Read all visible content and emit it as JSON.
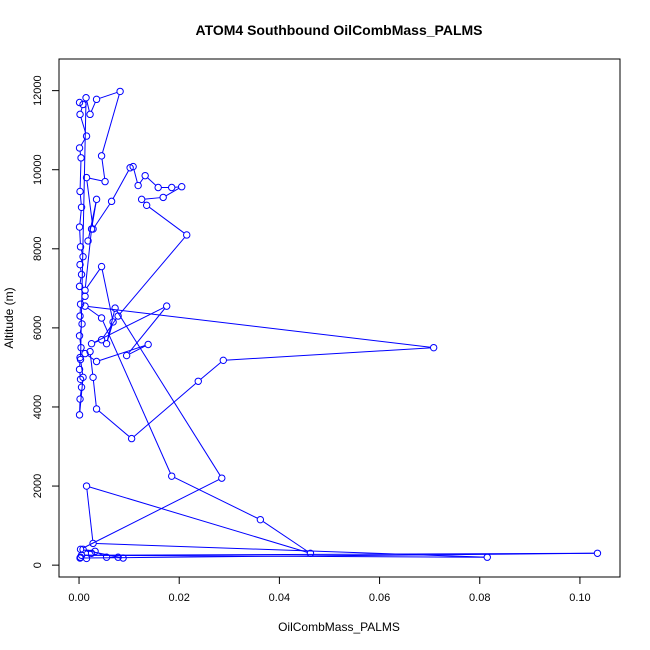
{
  "chart_data": {
    "type": "scatter",
    "title": "ATOM4 Southbound OilCombMass_PALMS",
    "xlabel": "OilCombMass_PALMS",
    "ylabel": "Altitude (m)",
    "xlim": [
      -0.004,
      0.108
    ],
    "ylim": [
      -300,
      12800
    ],
    "xticks": [
      0,
      0.02,
      0.04,
      0.06,
      0.08,
      0.1
    ],
    "xtick_labels": [
      "0.00",
      "0.02",
      "0.04",
      "0.06",
      "0.08",
      "0.10"
    ],
    "yticks": [
      0,
      2000,
      4000,
      6000,
      8000,
      10000,
      12000
    ],
    "ytick_labels": [
      "0",
      "2000",
      "4000",
      "6000",
      "8000",
      "10000",
      "12000"
    ],
    "grid": false,
    "color": "#0000ff",
    "marker": "open-circle",
    "connected": true,
    "series": [
      {
        "x": [
          0.0001,
          0.0008,
          0.0002,
          0.0015,
          0.0001,
          0.0004,
          0.0002,
          0.0005,
          0.0001,
          0.0003,
          0.0008,
          0.0002,
          0.0005,
          0.0001,
          0.0012,
          0.0003,
          0.0002,
          0.0006,
          0.0001,
          0.0004,
          0.0002,
          0.0001,
          0.0003,
          0.0005,
          0.0002,
          0.0001,
          0.0008,
          0.0003,
          0.0014,
          0.0022,
          0.0035,
          0.0082,
          0.0045,
          0.0052,
          0.0015,
          0.0028,
          0.0065,
          0.0102,
          0.0108,
          0.0118,
          0.0132,
          0.0158,
          0.0185,
          0.0205,
          0.0168,
          0.0125,
          0.0135,
          0.0215,
          0.0078,
          0.0045,
          0.0025,
          0.0175,
          0.0095,
          0.0138,
          0.0035,
          0.0012,
          0.0022,
          0.0028,
          0.0035,
          0.0105,
          0.0238,
          0.0288,
          0.0708,
          0.0012,
          0.0045,
          0.0185,
          0.0362,
          0.0462,
          0.0015,
          0.0028,
          0.0815,
          0.0005,
          0.1035,
          0.0002,
          0.0003,
          0.0015,
          0.0025,
          0.0008,
          0.0032,
          0.0055,
          0.0078,
          0.0088,
          0.0003,
          0.0285,
          0.0072,
          0.0055,
          0.0068,
          0.0045,
          0.0012,
          0.0025,
          0.0035,
          0.0018
        ],
        "y": [
          11700,
          11650,
          11400,
          10850,
          10550,
          10300,
          9450,
          9050,
          8550,
          8050,
          7800,
          7600,
          7350,
          7050,
          6800,
          6600,
          6300,
          6100,
          5800,
          5500,
          5250,
          4950,
          4700,
          4500,
          4200,
          3800,
          4750,
          5200,
          11820,
          11400,
          11780,
          11980,
          10350,
          9700,
          9800,
          8500,
          9200,
          10050,
          10080,
          9600,
          9850,
          9550,
          9550,
          9570,
          9300,
          9250,
          9100,
          8350,
          6300,
          5700,
          5600,
          6550,
          5300,
          5580,
          5150,
          5350,
          5400,
          4750,
          3950,
          3200,
          4650,
          5180,
          5500,
          6550,
          6250,
          2250,
          1150,
          300,
          2000,
          550,
          200,
          250,
          300,
          180,
          200,
          170,
          300,
          400,
          350,
          200,
          200,
          180,
          400,
          2200,
          6500,
          5600,
          6150,
          7550,
          6950,
          8500,
          9250,
          8200
        ]
      }
    ]
  }
}
